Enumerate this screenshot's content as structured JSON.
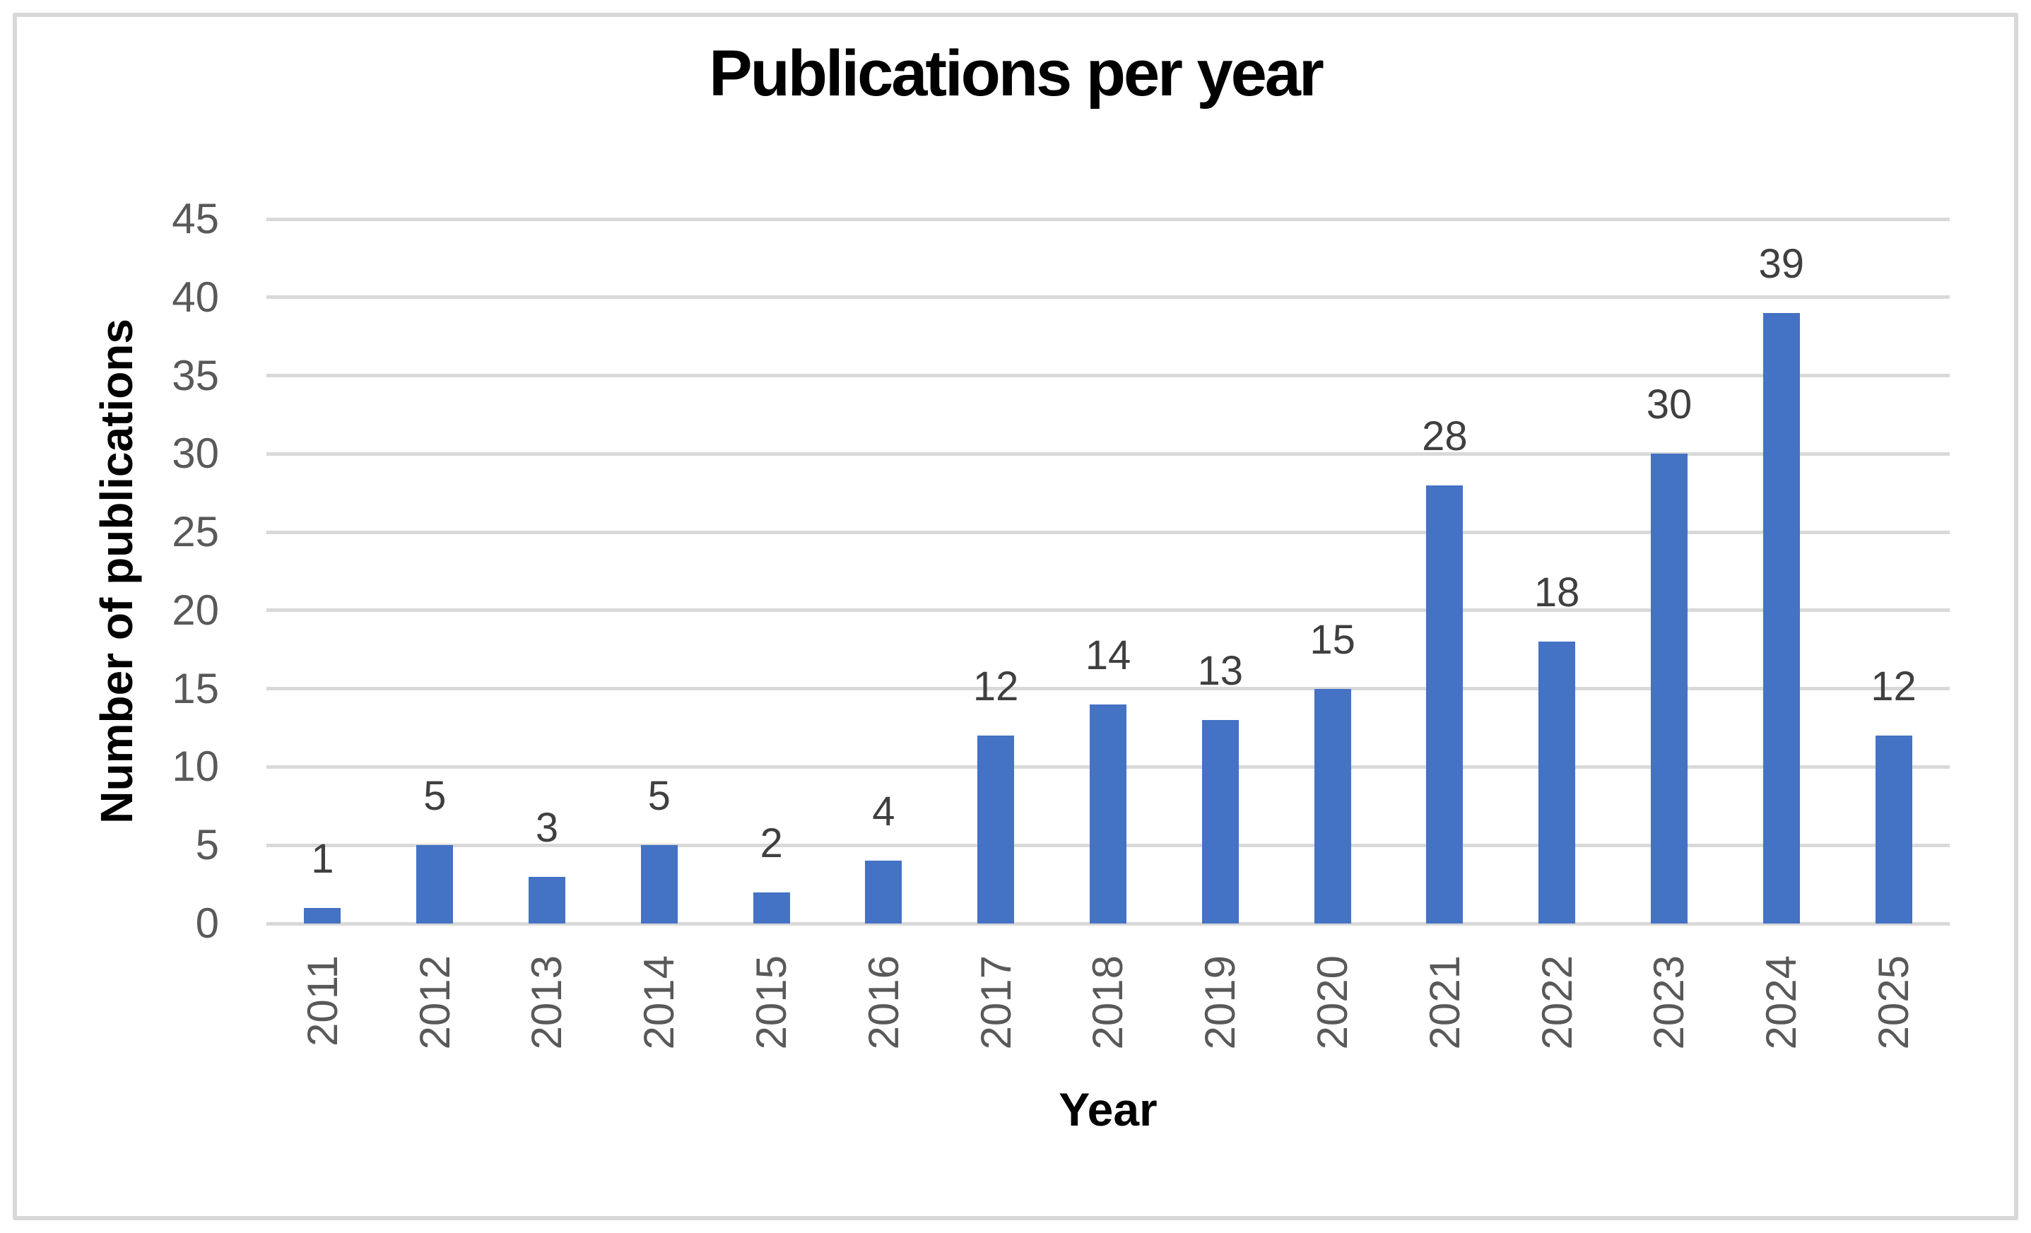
{
  "chart_data": {
    "type": "bar",
    "title": "Publications per year",
    "xlabel": "Year",
    "ylabel": "Number of publications",
    "categories": [
      "2011",
      "2012",
      "2013",
      "2014",
      "2015",
      "2016",
      "2017",
      "2018",
      "2019",
      "2020",
      "2021",
      "2022",
      "2023",
      "2024",
      "2025"
    ],
    "values": [
      1,
      5,
      3,
      5,
      2,
      4,
      12,
      14,
      13,
      15,
      28,
      18,
      30,
      39,
      12
    ],
    "ylim": [
      0,
      45
    ],
    "yticks": [
      0,
      5,
      10,
      15,
      20,
      25,
      30,
      35,
      40,
      45
    ],
    "grid": "horizontal",
    "legend_position": "none",
    "data_labels": true,
    "x_tick_rotation_degrees": 90,
    "colors": {
      "bar": "#4472C4",
      "gridline": "#D9D9D9",
      "tick_label": "#595959",
      "data_label": "#3F3F3F",
      "title": "#000000",
      "frame_border": "#D8D8D8"
    }
  }
}
